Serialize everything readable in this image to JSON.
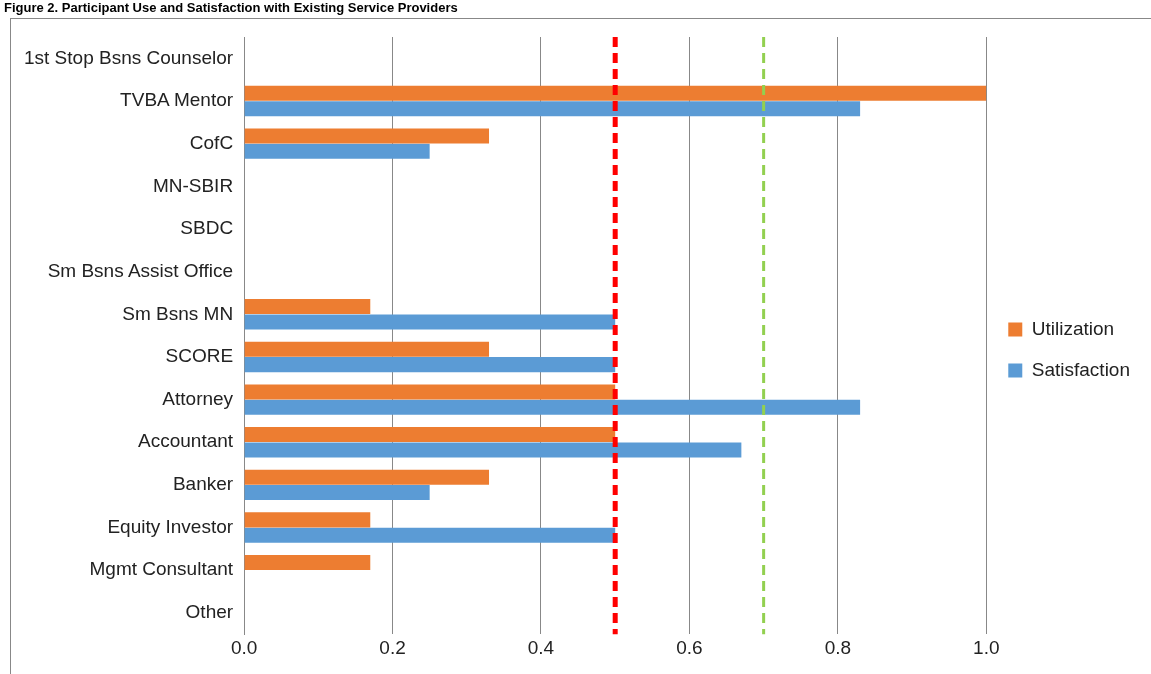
{
  "chart_data": {
    "type": "bar",
    "orientation": "horizontal",
    "title": "Figure 2. Participant Use and Satisfaction with Existing Service Providers",
    "categories": [
      "1st Stop Bsns Counselor",
      "TVBA Mentor",
      "CofC",
      "MN-SBIR",
      "SBDC",
      "Sm Bsns Assist Office",
      "Sm Bsns MN",
      "SCORE",
      "Attorney",
      "Accountant",
      "Banker",
      "Equity Investor",
      "Mgmt Consultant",
      "Other"
    ],
    "series": [
      {
        "name": "Utilization",
        "color": "#ed7d31",
        "values": [
          null,
          1.0,
          0.33,
          null,
          null,
          null,
          0.17,
          0.33,
          0.5,
          0.5,
          0.33,
          0.17,
          0.17,
          null
        ]
      },
      {
        "name": "Satisfaction",
        "color": "#5b9bd5",
        "values": [
          null,
          0.83,
          0.25,
          null,
          null,
          null,
          0.5,
          0.5,
          0.83,
          0.67,
          0.25,
          0.5,
          null,
          null
        ]
      }
    ],
    "xlim": [
      0,
      1
    ],
    "xticks": [
      {
        "value": 0,
        "label": "0.0"
      },
      {
        "value": 0.2,
        "label": "0.2"
      },
      {
        "value": 0.4,
        "label": "0.4"
      },
      {
        "value": 0.6,
        "label": "0.6"
      },
      {
        "value": 0.8,
        "label": "0.8"
      },
      {
        "value": 1,
        "label": "1.0"
      }
    ],
    "grid": "x",
    "legend": "right",
    "ref_lines": [
      {
        "axis": "x",
        "value": 0.5,
        "color": "#ff0000",
        "line_style": "dashed"
      },
      {
        "axis": "x",
        "value": 0.7,
        "color": "#92d050",
        "line_style": "dashed"
      }
    ]
  }
}
